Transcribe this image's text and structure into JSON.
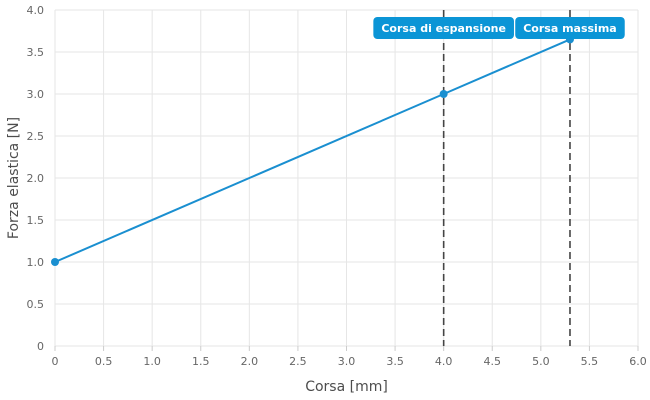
{
  "chart_data": {
    "type": "line",
    "xlabel": "Corsa [mm]",
    "ylabel": "Forza elastica [N]",
    "xlim": [
      0,
      6
    ],
    "ylim": [
      0,
      4
    ],
    "xticks": [
      0,
      0.5,
      1,
      1.5,
      2,
      2.5,
      3,
      3.5,
      4,
      4.5,
      5,
      5.5,
      6
    ],
    "yticks": [
      0,
      0.5,
      1,
      1.5,
      2,
      2.5,
      3,
      3.5,
      4
    ],
    "xtick_labels": [
      "0",
      "0.5",
      "1.0",
      "1.5",
      "2.0",
      "2.5",
      "3.0",
      "3.5",
      "4.0",
      "4.5",
      "5.0",
      "5.5",
      "6.0"
    ],
    "ytick_labels": [
      "0",
      "0.5",
      "1.0",
      "1.5",
      "2.0",
      "2.5",
      "3.0",
      "3.5",
      "4.0"
    ],
    "grid": true,
    "series": [
      {
        "color": "#1a8fd0",
        "points": [
          {
            "x": 0,
            "y": 1.0
          },
          {
            "x": 4.0,
            "y": 3.0
          },
          {
            "x": 5.3,
            "y": 3.65
          }
        ]
      }
    ],
    "markers": [
      {
        "x": 4.0,
        "label": "Corsa di espansione"
      },
      {
        "x": 5.3,
        "label": "Corsa massima"
      }
    ],
    "callout_color": "#0b95d6"
  }
}
